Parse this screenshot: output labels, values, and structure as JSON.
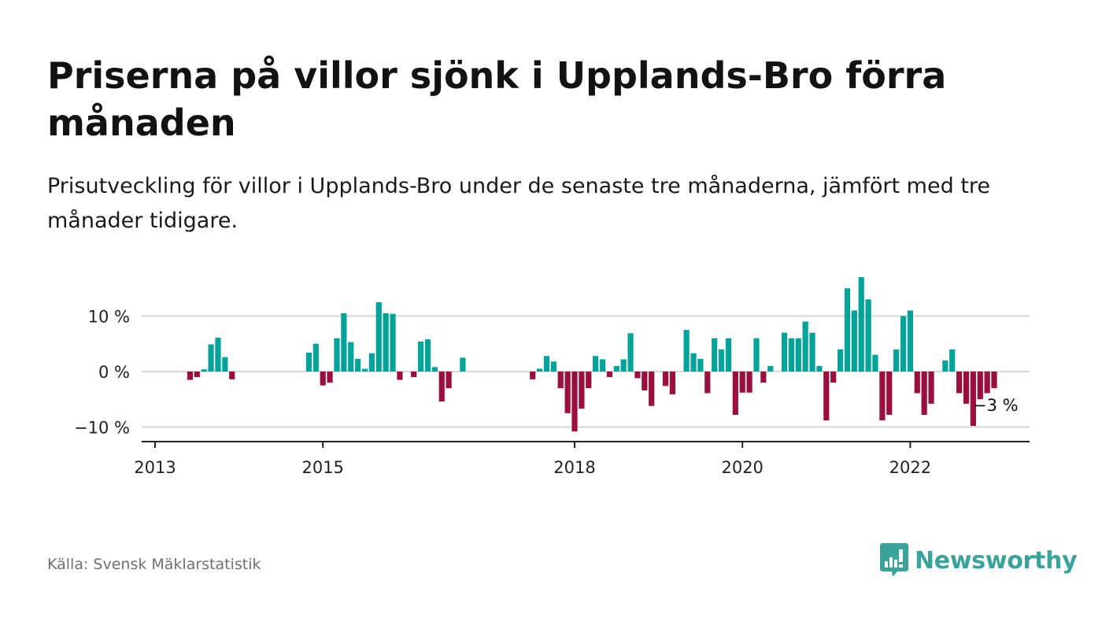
{
  "title": "Priserna på villor sjönk i Upplands-Bro förra månaden",
  "subtitle": "Prisutveckling för villor i Upplands-Bro under de senaste tre månaderna, jämfört med tre månader tidigare.",
  "source": "Källa: Svensk Mäklarstatistik",
  "brand": "Newsworthy",
  "colors": {
    "positive": "#00a39a",
    "negative": "#9b0f3e",
    "brand": "#3aa39a"
  },
  "chart_data": {
    "type": "bar",
    "ylim": [
      -12,
      18
    ],
    "y_ticks": [
      {
        "value": 10,
        "label": "10 %"
      },
      {
        "value": 0,
        "label": "0 %"
      },
      {
        "value": -10,
        "label": "−10 %"
      }
    ],
    "x_ticks": [
      {
        "value": 2013,
        "label": "2013"
      },
      {
        "value": 2015,
        "label": "2015"
      },
      {
        "value": 2018,
        "label": "2018"
      },
      {
        "value": 2020,
        "label": "2020"
      },
      {
        "value": 2022,
        "label": "2022"
      }
    ],
    "grid": true,
    "annotation": {
      "text": "−3 %"
    },
    "points": [
      [
        "2013-06",
        -1.5
      ],
      [
        "2013-07",
        -1.0
      ],
      [
        "2013-08",
        0.4
      ],
      [
        "2013-09",
        4.9
      ],
      [
        "2013-10",
        6.1
      ],
      [
        "2013-11",
        2.6
      ],
      [
        "2013-12",
        -1.4
      ],
      [
        "2014-11",
        3.4
      ],
      [
        "2014-12",
        5.0
      ],
      [
        "2015-01",
        -2.5
      ],
      [
        "2015-02",
        -2.0
      ],
      [
        "2015-03",
        6.0
      ],
      [
        "2015-04",
        10.5
      ],
      [
        "2015-05",
        5.3
      ],
      [
        "2015-06",
        2.3
      ],
      [
        "2015-07",
        0.5
      ],
      [
        "2015-08",
        3.3
      ],
      [
        "2015-09",
        12.5
      ],
      [
        "2015-10",
        10.5
      ],
      [
        "2015-11",
        10.4
      ],
      [
        "2015-12",
        -1.5
      ],
      [
        "2016-02",
        -1.0
      ],
      [
        "2016-03",
        5.4
      ],
      [
        "2016-04",
        5.8
      ],
      [
        "2016-05",
        0.8
      ],
      [
        "2016-06",
        -5.4
      ],
      [
        "2016-07",
        -3.0
      ],
      [
        "2016-09",
        2.5
      ],
      [
        "2017-07",
        -1.4
      ],
      [
        "2017-08",
        0.5
      ],
      [
        "2017-09",
        2.8
      ],
      [
        "2017-10",
        1.8
      ],
      [
        "2017-11",
        -3.0
      ],
      [
        "2017-12",
        -7.5
      ],
      [
        "2018-01",
        -10.8
      ],
      [
        "2018-02",
        -6.7
      ],
      [
        "2018-03",
        -3.0
      ],
      [
        "2018-04",
        2.8
      ],
      [
        "2018-05",
        2.2
      ],
      [
        "2018-06",
        -1.0
      ],
      [
        "2018-07",
        1.0
      ],
      [
        "2018-08",
        2.2
      ],
      [
        "2018-09",
        6.9
      ],
      [
        "2018-10",
        -1.2
      ],
      [
        "2018-11",
        -3.4
      ],
      [
        "2018-12",
        -6.2
      ],
      [
        "2019-02",
        -2.6
      ],
      [
        "2019-03",
        -4.1
      ],
      [
        "2019-05",
        7.5
      ],
      [
        "2019-06",
        3.3
      ],
      [
        "2019-07",
        2.3
      ],
      [
        "2019-08",
        -3.9
      ],
      [
        "2019-09",
        6.0
      ],
      [
        "2019-10",
        4.0
      ],
      [
        "2019-11",
        6.0
      ],
      [
        "2019-12",
        -7.8
      ],
      [
        "2020-01",
        -3.8
      ],
      [
        "2020-02",
        -3.8
      ],
      [
        "2020-03",
        6.0
      ],
      [
        "2020-04",
        -2.0
      ],
      [
        "2020-05",
        1.0
      ],
      [
        "2020-07",
        7.0
      ],
      [
        "2020-08",
        6.0
      ],
      [
        "2020-09",
        6.0
      ],
      [
        "2020-10",
        9.0
      ],
      [
        "2020-11",
        7.0
      ],
      [
        "2020-12",
        1.0
      ],
      [
        "2021-01",
        -8.8
      ],
      [
        "2021-02",
        -2.0
      ],
      [
        "2021-03",
        4.0
      ],
      [
        "2021-04",
        15.0
      ],
      [
        "2021-05",
        11.0
      ],
      [
        "2021-06",
        17.0
      ],
      [
        "2021-07",
        13.0
      ],
      [
        "2021-08",
        3.0
      ],
      [
        "2021-09",
        -8.8
      ],
      [
        "2021-10",
        -7.8
      ],
      [
        "2021-11",
        4.0
      ],
      [
        "2021-12",
        10.0
      ],
      [
        "2022-01",
        11.0
      ],
      [
        "2022-02",
        -3.9
      ],
      [
        "2022-03",
        -7.8
      ],
      [
        "2022-04",
        -5.8
      ],
      [
        "2022-06",
        2.0
      ],
      [
        "2022-07",
        4.0
      ],
      [
        "2022-08",
        -3.9
      ],
      [
        "2022-09",
        -5.8
      ],
      [
        "2022-10",
        -9.8
      ],
      [
        "2022-11",
        -5.0
      ],
      [
        "2022-12",
        -3.9
      ],
      [
        "2023-01",
        -3.0
      ]
    ]
  }
}
